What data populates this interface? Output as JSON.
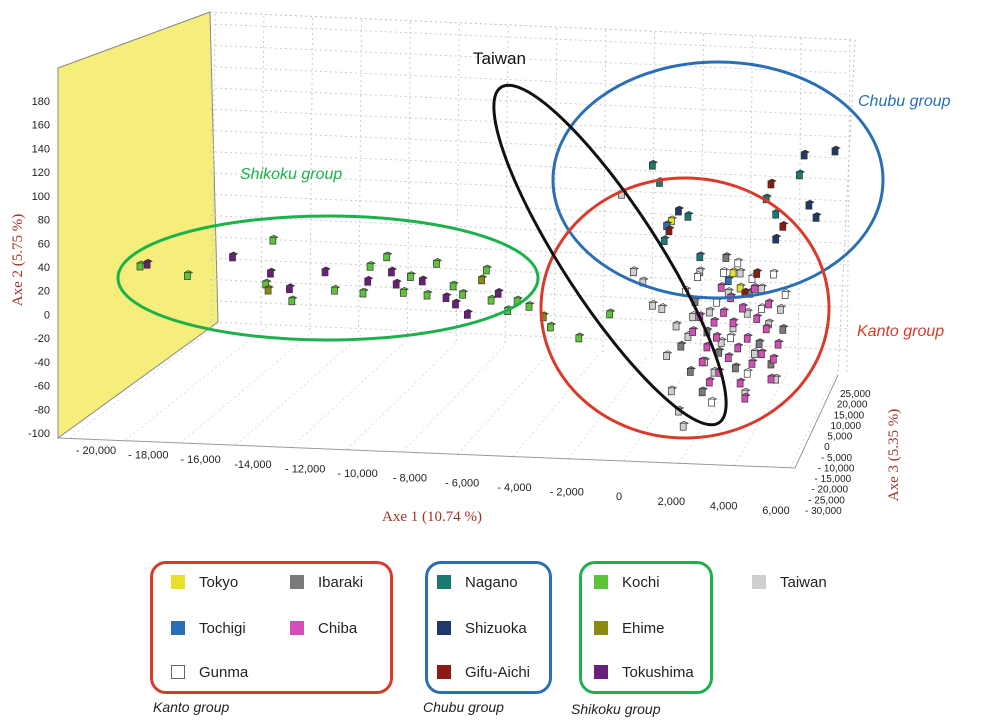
{
  "chart_data": {
    "type": "scatter3d",
    "axes": {
      "x": {
        "label": "Axe 1 (10.74 %)",
        "range": [
          -21000,
          6000
        ],
        "ticks": [
          "- 20,000",
          "- 18,000",
          "- 16,000",
          "-14,000",
          "- 12,000",
          "- 10,000",
          "- 8,000",
          "- 6,000",
          "- 4,000",
          "- 2,000",
          "0",
          "2,000",
          "4,000",
          "6,000"
        ]
      },
      "y": {
        "label": "Axe 2 (5.75 %)",
        "range": [
          -100,
          190
        ],
        "ticks": [
          "180",
          "160",
          "140",
          "120",
          "100",
          "80",
          "60",
          "40",
          "20",
          "0",
          "-20",
          "-40",
          "-60",
          "-80",
          "-100"
        ]
      },
      "z": {
        "label": "Axe 3 (5.35 %)",
        "range": [
          -30000,
          25000
        ],
        "ticks": [
          "25,000",
          "20,000",
          "15,000",
          "10,000",
          "5,000",
          "0",
          "- 5,000",
          "- 10,000",
          "- 15,000",
          "- 20,000",
          "- 25,000",
          "- 30,000"
        ]
      }
    },
    "grid": true,
    "group_labels": [
      {
        "text": "Taiwan",
        "color": "#111111"
      },
      {
        "text": "Chubu group",
        "color": "#2a6fb5"
      },
      {
        "text": "Shikoku group",
        "color": "#1db14b"
      },
      {
        "text": "Kanto group",
        "color": "#d93b2b"
      }
    ],
    "series": [
      {
        "name": "Tokyo",
        "color": "#e8e02a",
        "group": "Kanto group"
      },
      {
        "name": "Ibaraki",
        "color": "#7a7a7a",
        "group": "Kanto group"
      },
      {
        "name": "Tochigi",
        "color": "#2a6fb5",
        "group": "Kanto group"
      },
      {
        "name": "Chiba",
        "color": "#d34fb7",
        "group": "Kanto group"
      },
      {
        "name": "Gunma",
        "color": "#ffffff",
        "group": "Kanto group"
      },
      {
        "name": "Nagano",
        "color": "#1a7a72",
        "group": "Chubu group"
      },
      {
        "name": "Shizuoka",
        "color": "#1f3a68",
        "group": "Chubu group"
      },
      {
        "name": "Gifu-Aichi",
        "color": "#8b1a10",
        "group": "Chubu group"
      },
      {
        "name": "Kochi",
        "color": "#5cc43a",
        "group": "Shikoku group"
      },
      {
        "name": "Ehime",
        "color": "#8a8a10",
        "group": "Shikoku group"
      },
      {
        "name": "Tokushima",
        "color": "#6a1f7a",
        "group": "Shikoku group"
      },
      {
        "name": "Taiwan",
        "color": "#cfcfcf",
        "group": ""
      }
    ],
    "points": [
      {
        "s": "Tokushima",
        "x": -20300,
        "y": 50
      },
      {
        "s": "Kochi",
        "x": -20600,
        "y": 48
      },
      {
        "s": "Kochi",
        "x": -18600,
        "y": 40
      },
      {
        "s": "Kochi",
        "x": -15000,
        "y": 78
      },
      {
        "s": "Tokushima",
        "x": -16700,
        "y": 60
      },
      {
        "s": "Tokushima",
        "x": -15100,
        "y": 45
      },
      {
        "s": "Kochi",
        "x": -15300,
        "y": 34
      },
      {
        "s": "Ehime",
        "x": -15200,
        "y": 28
      },
      {
        "s": "Tokushima",
        "x": -14300,
        "y": 30
      },
      {
        "s": "Kochi",
        "x": -14200,
        "y": 18
      },
      {
        "s": "Tokushima",
        "x": -12800,
        "y": 48
      },
      {
        "s": "Kochi",
        "x": -12400,
        "y": 30
      },
      {
        "s": "Kochi",
        "x": -11200,
        "y": 28
      },
      {
        "s": "Tokushima",
        "x": -11000,
        "y": 40
      },
      {
        "s": "Kochi",
        "x": -10900,
        "y": 55
      },
      {
        "s": "Kochi",
        "x": -10200,
        "y": 65
      },
      {
        "s": "Tokushima",
        "x": -10000,
        "y": 50
      },
      {
        "s": "Tokushima",
        "x": -9800,
        "y": 38
      },
      {
        "s": "Kochi",
        "x": -9500,
        "y": 30
      },
      {
        "s": "Kochi",
        "x": -9200,
        "y": 46
      },
      {
        "s": "Tokushima",
        "x": -8700,
        "y": 42
      },
      {
        "s": "Kochi",
        "x": -8500,
        "y": 28
      },
      {
        "s": "Kochi",
        "x": -8100,
        "y": 60
      },
      {
        "s": "Tokushima",
        "x": -7700,
        "y": 26
      },
      {
        "s": "Kochi",
        "x": -7400,
        "y": 38
      },
      {
        "s": "Tokushima",
        "x": -7300,
        "y": 20
      },
      {
        "s": "Kochi",
        "x": -7000,
        "y": 30
      },
      {
        "s": "Tokushima",
        "x": -6800,
        "y": 10
      },
      {
        "s": "Ehime",
        "x": -6200,
        "y": 45
      },
      {
        "s": "Kochi",
        "x": -6000,
        "y": 55
      },
      {
        "s": "Kochi",
        "x": -5800,
        "y": 25
      },
      {
        "s": "Tokushima",
        "x": -5500,
        "y": 32
      },
      {
        "s": "Kochi",
        "x": -5100,
        "y": 15
      },
      {
        "s": "Kochi",
        "x": -4700,
        "y": 25
      },
      {
        "s": "Kochi",
        "x": -4200,
        "y": 20
      },
      {
        "s": "Ehime",
        "x": -3600,
        "y": 10
      },
      {
        "s": "Kochi",
        "x": -3300,
        "y": 0
      },
      {
        "s": "Kochi",
        "x": -2100,
        "y": -10
      },
      {
        "s": "Kochi",
        "x": -800,
        "y": 15
      },
      {
        "s": "Taiwan",
        "x": -300,
        "y": 135
      },
      {
        "s": "Taiwan",
        "x": 200,
        "y": 58
      },
      {
        "s": "Taiwan",
        "x": 600,
        "y": 48
      },
      {
        "s": "Taiwan",
        "x": 1000,
        "y": 25
      },
      {
        "s": "Taiwan",
        "x": 1400,
        "y": 22
      },
      {
        "s": "Taiwan",
        "x": 1600,
        "y": -25
      },
      {
        "s": "Taiwan",
        "x": 1800,
        "y": -60
      },
      {
        "s": "Taiwan",
        "x": 2100,
        "y": -80
      },
      {
        "s": "Taiwan",
        "x": 2300,
        "y": -95
      },
      {
        "s": "Taiwan",
        "x": 2000,
        "y": 5
      },
      {
        "s": "Taiwan",
        "x": 2500,
        "y": -5
      },
      {
        "s": "Taiwan",
        "x": 2700,
        "y": 15
      },
      {
        "s": "Taiwan",
        "x": 3000,
        "y": 60
      },
      {
        "s": "Taiwan",
        "x": 3400,
        "y": 20
      },
      {
        "s": "Taiwan",
        "x": 3600,
        "y": -40
      },
      {
        "s": "Taiwan",
        "x": 3900,
        "y": -10
      },
      {
        "s": "Taiwan",
        "x": 4200,
        "y": 40
      },
      {
        "s": "Taiwan",
        "x": 4400,
        "y": 5
      },
      {
        "s": "Taiwan",
        "x": 4700,
        "y": 60
      },
      {
        "s": "Taiwan",
        "x": 5000,
        "y": 20
      },
      {
        "s": "Taiwan",
        "x": 5300,
        "y": -20
      },
      {
        "s": "Taiwan",
        "x": 5600,
        "y": 45
      },
      {
        "s": "Taiwan",
        "x": 5900,
        "y": 10
      },
      {
        "s": "Taiwan",
        "x": 6200,
        "y": -45
      },
      {
        "s": "Taiwan",
        "x": 6400,
        "y": 25
      },
      {
        "s": "Taiwan",
        "x": 3200,
        "y": -30
      },
      {
        "s": "Taiwan",
        "x": 4900,
        "y": -60
      },
      {
        "s": "Gunma",
        "x": 4000,
        "y": 60
      },
      {
        "s": "Gunma",
        "x": 4600,
        "y": 70
      },
      {
        "s": "Gunma",
        "x": 5200,
        "y": 55
      },
      {
        "s": "Gunma",
        "x": 3700,
        "y": 30
      },
      {
        "s": "Gunma",
        "x": 4300,
        "y": -5
      },
      {
        "s": "Gunma",
        "x": 5600,
        "y": 25
      },
      {
        "s": "Gunma",
        "x": 6100,
        "y": 60
      },
      {
        "s": "Gunma",
        "x": 2900,
        "y": 55
      },
      {
        "s": "Gunma",
        "x": 6600,
        "y": 40
      },
      {
        "s": "Gunma",
        "x": 5000,
        "y": -40
      },
      {
        "s": "Gunma",
        "x": 3500,
        "y": -70
      },
      {
        "s": "Gunma",
        "x": 2400,
        "y": 40
      },
      {
        "s": "Ibaraki",
        "x": 2800,
        "y": 30
      },
      {
        "s": "Ibaraki",
        "x": 3300,
        "y": 0
      },
      {
        "s": "Ibaraki",
        "x": 3800,
        "y": -20
      },
      {
        "s": "Ibaraki",
        "x": 2600,
        "y": -40
      },
      {
        "s": "Ibaraki",
        "x": 4500,
        "y": -35
      },
      {
        "s": "Ibaraki",
        "x": 5100,
        "y": 40
      },
      {
        "s": "Ibaraki",
        "x": 5500,
        "y": -10
      },
      {
        "s": "Ibaraki",
        "x": 6000,
        "y": -30
      },
      {
        "s": "Ibaraki",
        "x": 4100,
        "y": 75
      },
      {
        "s": "Ibaraki",
        "x": 2200,
        "y": -15
      },
      {
        "s": "Ibaraki",
        "x": 6500,
        "y": 5
      },
      {
        "s": "Ibaraki",
        "x": 3100,
        "y": -60
      },
      {
        "s": "Chiba",
        "x": 3000,
        "y": 15
      },
      {
        "s": "Chiba",
        "x": 3300,
        "y": -15
      },
      {
        "s": "Chiba",
        "x": 3600,
        "y": 10
      },
      {
        "s": "Chiba",
        "x": 3800,
        "y": -40
      },
      {
        "s": "Chiba",
        "x": 4000,
        "y": 20
      },
      {
        "s": "Chiba",
        "x": 4200,
        "y": -25
      },
      {
        "s": "Chiba",
        "x": 4400,
        "y": 10
      },
      {
        "s": "Chiba",
        "x": 4600,
        "y": -15
      },
      {
        "s": "Chiba",
        "x": 4800,
        "y": 25
      },
      {
        "s": "Chiba",
        "x": 5000,
        "y": -5
      },
      {
        "s": "Chiba",
        "x": 5200,
        "y": -30
      },
      {
        "s": "Chiba",
        "x": 5400,
        "y": 15
      },
      {
        "s": "Chiba",
        "x": 5600,
        "y": -20
      },
      {
        "s": "Chiba",
        "x": 5800,
        "y": 5
      },
      {
        "s": "Chiba",
        "x": 6000,
        "y": -45
      },
      {
        "s": "Chiba",
        "x": 3400,
        "y": -50
      },
      {
        "s": "Chiba",
        "x": 4700,
        "y": -50
      },
      {
        "s": "Chiba",
        "x": 5900,
        "y": 30
      },
      {
        "s": "Chiba",
        "x": 3100,
        "y": -30
      },
      {
        "s": "Chiba",
        "x": 4300,
        "y": 35
      },
      {
        "s": "Chiba",
        "x": 6300,
        "y": -10
      },
      {
        "s": "Chiba",
        "x": 5300,
        "y": 45
      },
      {
        "s": "Chiba",
        "x": 3700,
        "y": -5
      },
      {
        "s": "Chiba",
        "x": 2700,
        "y": 0
      },
      {
        "s": "Chiba",
        "x": 4900,
        "y": -65
      },
      {
        "s": "Chiba",
        "x": 6100,
        "y": -25
      },
      {
        "s": "Chiba",
        "x": 3900,
        "y": 45
      },
      {
        "s": "Tokyo",
        "x": 4400,
        "y": 60
      },
      {
        "s": "Tokyo",
        "x": 4700,
        "y": 45
      },
      {
        "s": "Tokyo",
        "x": 1800,
        "y": 110
      },
      {
        "s": "Tochigi",
        "x": 4200,
        "y": 52
      },
      {
        "s": "Tochigi",
        "x": 1600,
        "y": 105
      },
      {
        "s": "Nagano",
        "x": 1000,
        "y": 165
      },
      {
        "s": "Nagano",
        "x": 1300,
        "y": 148
      },
      {
        "s": "Nagano",
        "x": 2500,
        "y": 115
      },
      {
        "s": "Nagano",
        "x": 3000,
        "y": 75
      },
      {
        "s": "Nagano",
        "x": 5800,
        "y": 135
      },
      {
        "s": "Nagano",
        "x": 6200,
        "y": 120
      },
      {
        "s": "Nagano",
        "x": 7200,
        "y": 160
      },
      {
        "s": "Nagano",
        "x": 1500,
        "y": 90
      },
      {
        "s": "Shizuoka",
        "x": 8700,
        "y": 185
      },
      {
        "s": "Shizuoka",
        "x": 7400,
        "y": 180
      },
      {
        "s": "Shizuoka",
        "x": 7600,
        "y": 130
      },
      {
        "s": "Shizuoka",
        "x": 6200,
        "y": 95
      },
      {
        "s": "Shizuoka",
        "x": 7900,
        "y": 118
      },
      {
        "s": "Shizuoka",
        "x": 2100,
        "y": 120
      },
      {
        "s": "Gifu-Aichi",
        "x": 6000,
        "y": 150
      },
      {
        "s": "Gifu-Aichi",
        "x": 6500,
        "y": 108
      },
      {
        "s": "Gifu-Aichi",
        "x": 5400,
        "y": 60
      },
      {
        "s": "Gifu-Aichi",
        "x": 1700,
        "y": 100
      },
      {
        "s": "Gifu-Aichi",
        "x": 4900,
        "y": 40
      }
    ]
  },
  "legend": {
    "kanto_caption": "Kanto group",
    "chubu_caption": "Chubu group",
    "shikoku_caption": "Shikoku group",
    "kanto": [
      "Tokyo",
      "Ibaraki",
      "Tochigi",
      "Chiba",
      "Gunma"
    ],
    "chubu": [
      "Nagano",
      "Shizuoka",
      "Gifu-Aichi"
    ],
    "shikoku": [
      "Kochi",
      "Ehime",
      "Tokushima"
    ],
    "other": [
      "Taiwan"
    ]
  }
}
